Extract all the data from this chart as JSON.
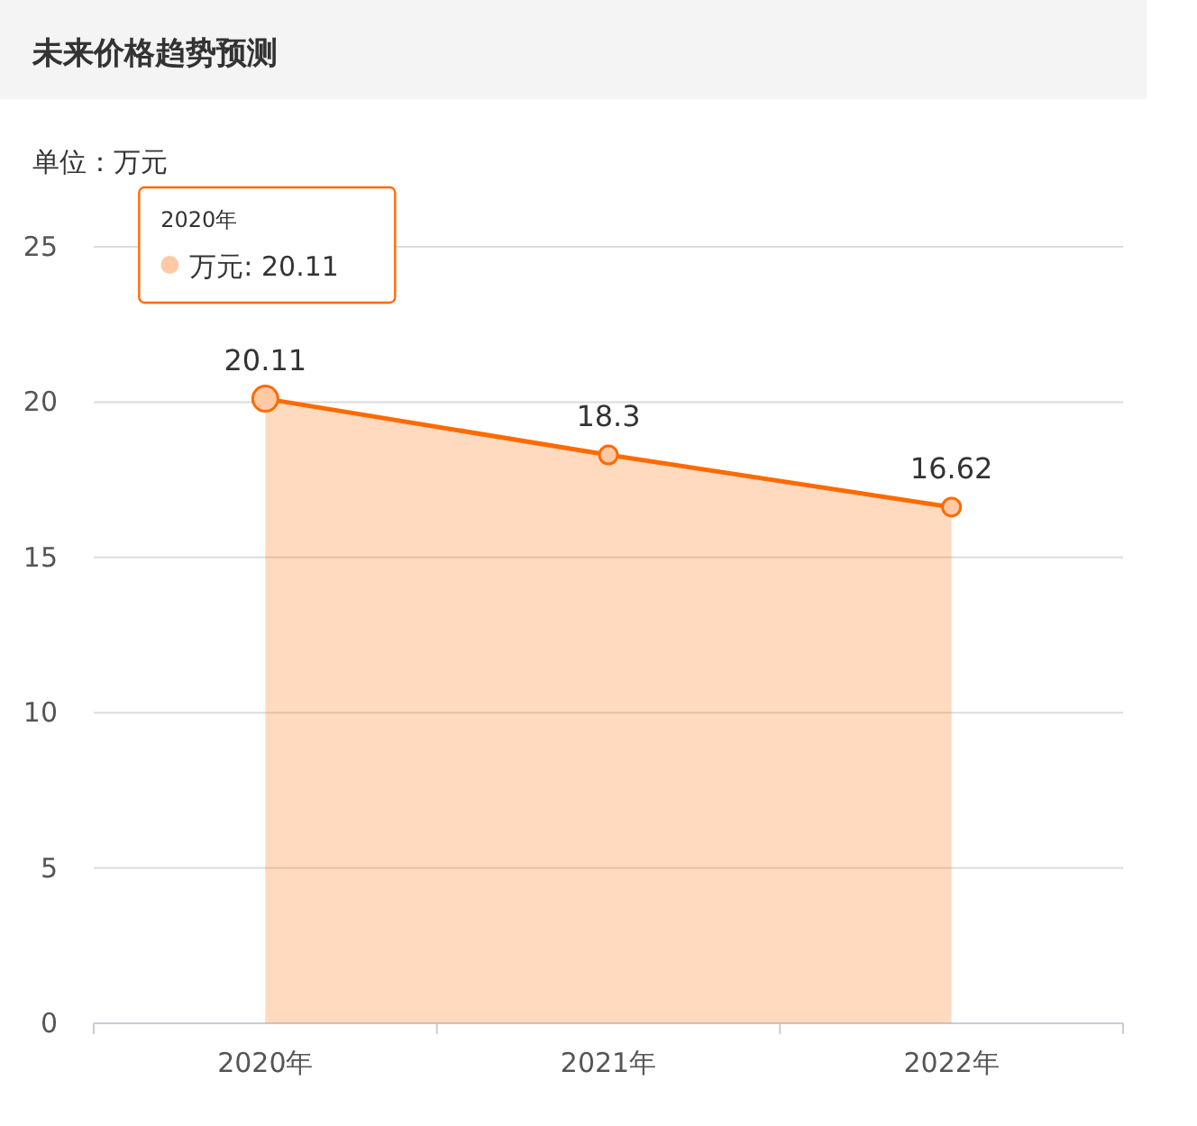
{
  "chart_data": {
    "type": "area",
    "title": "未来价格趋势预测",
    "subtitle": "单位：万元",
    "categories": [
      "2020年",
      "2021年",
      "2022年"
    ],
    "series": [
      {
        "color": "#ff6a00",
        "values": [
          20.11,
          18.3,
          16.62
        ]
      }
    ],
    "annotations": [
      "2020年",
      "万元: 20.11"
    ],
    "ylim": [
      0,
      25
    ],
    "yticks": [
      0,
      5,
      10,
      15,
      20,
      25
    ],
    "grid": "y",
    "marker": "circle",
    "data_labels": true
  }
}
